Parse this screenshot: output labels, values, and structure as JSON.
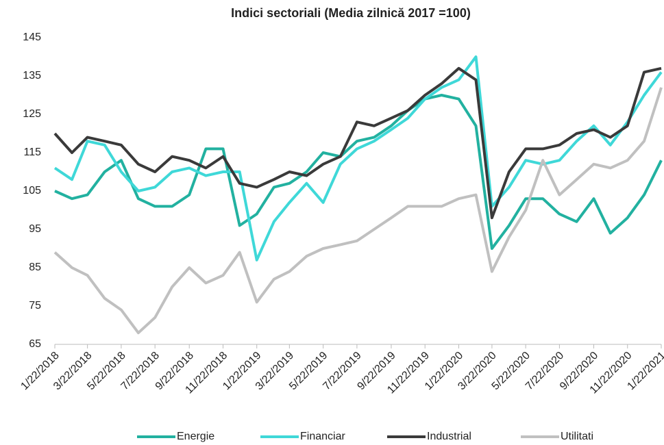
{
  "chart_data": {
    "type": "line",
    "title": "Indici sectoriali (Media zilnică 2017 =100)",
    "x": [
      "1/22/2018",
      "2/22/2018",
      "3/22/2018",
      "4/22/2018",
      "5/22/2018",
      "6/22/2018",
      "7/22/2018",
      "8/22/2018",
      "9/22/2018",
      "10/22/2018",
      "11/22/2018",
      "12/22/2018",
      "1/22/2019",
      "2/22/2019",
      "3/22/2019",
      "4/22/2019",
      "5/22/2019",
      "6/22/2019",
      "7/22/2019",
      "8/22/2019",
      "9/22/2019",
      "10/22/2019",
      "11/22/2019",
      "12/22/2019",
      "1/22/2020",
      "2/22/2020",
      "3/22/2020",
      "4/22/2020",
      "5/22/2020",
      "6/22/2020",
      "7/22/2020",
      "8/22/2020",
      "9/22/2020",
      "10/22/2020",
      "11/22/2020",
      "12/22/2020",
      "1/22/2021"
    ],
    "series": [
      {
        "name": "Energie",
        "color": "#22b1a0",
        "values": [
          105,
          103,
          104,
          110,
          113,
          103,
          101,
          101,
          104,
          116,
          116,
          96,
          99,
          106,
          107,
          110,
          115,
          114,
          118,
          119,
          122,
          126,
          129,
          130,
          129,
          122,
          90,
          96,
          103,
          103,
          99,
          97,
          103,
          94,
          98,
          104,
          113
        ]
      },
      {
        "name": "Financiar",
        "color": "#3fd8d8",
        "values": [
          111,
          108,
          118,
          117,
          110,
          105,
          106,
          110,
          111,
          109,
          110,
          110,
          87,
          97,
          102,
          107,
          102,
          112,
          116,
          118,
          121,
          124,
          129,
          132,
          134,
          140,
          101,
          106,
          113,
          112,
          113,
          118,
          122,
          117,
          123,
          130,
          136
        ]
      },
      {
        "name": "Industrial",
        "color": "#3a3a3a",
        "values": [
          120,
          115,
          119,
          118,
          117,
          112,
          110,
          114,
          113,
          111,
          114,
          107,
          106,
          108,
          110,
          109,
          112,
          114,
          123,
          122,
          124,
          126,
          130,
          133,
          137,
          134,
          98,
          110,
          116,
          116,
          117,
          120,
          121,
          119,
          122,
          136,
          137
        ]
      },
      {
        "name": "Utilitati",
        "color": "#c0c0c0",
        "values": [
          89,
          85,
          83,
          77,
          74,
          68,
          72,
          80,
          85,
          81,
          83,
          89,
          76,
          82,
          84,
          88,
          90,
          91,
          92,
          95,
          98,
          101,
          101,
          101,
          103,
          104,
          84,
          93,
          100,
          113,
          104,
          108,
          112,
          111,
          113,
          118,
          132
        ]
      }
    ],
    "xlim": [
      "1/22/2018",
      "1/22/2021"
    ],
    "xticks": [
      "1/22/2018",
      "3/22/2018",
      "5/22/2018",
      "7/22/2018",
      "9/22/2018",
      "11/22/2018",
      "1/22/2019",
      "3/22/2019",
      "5/22/2019",
      "7/22/2019",
      "9/22/2019",
      "11/22/2019",
      "1/22/2020",
      "3/22/2020",
      "5/22/2020",
      "7/22/2020",
      "9/22/2020",
      "11/22/2020",
      "1/22/2021"
    ],
    "ylim": [
      65,
      145
    ],
    "yticks": [
      65,
      75,
      85,
      95,
      105,
      115,
      125,
      135,
      145
    ],
    "legend": "bottom"
  }
}
